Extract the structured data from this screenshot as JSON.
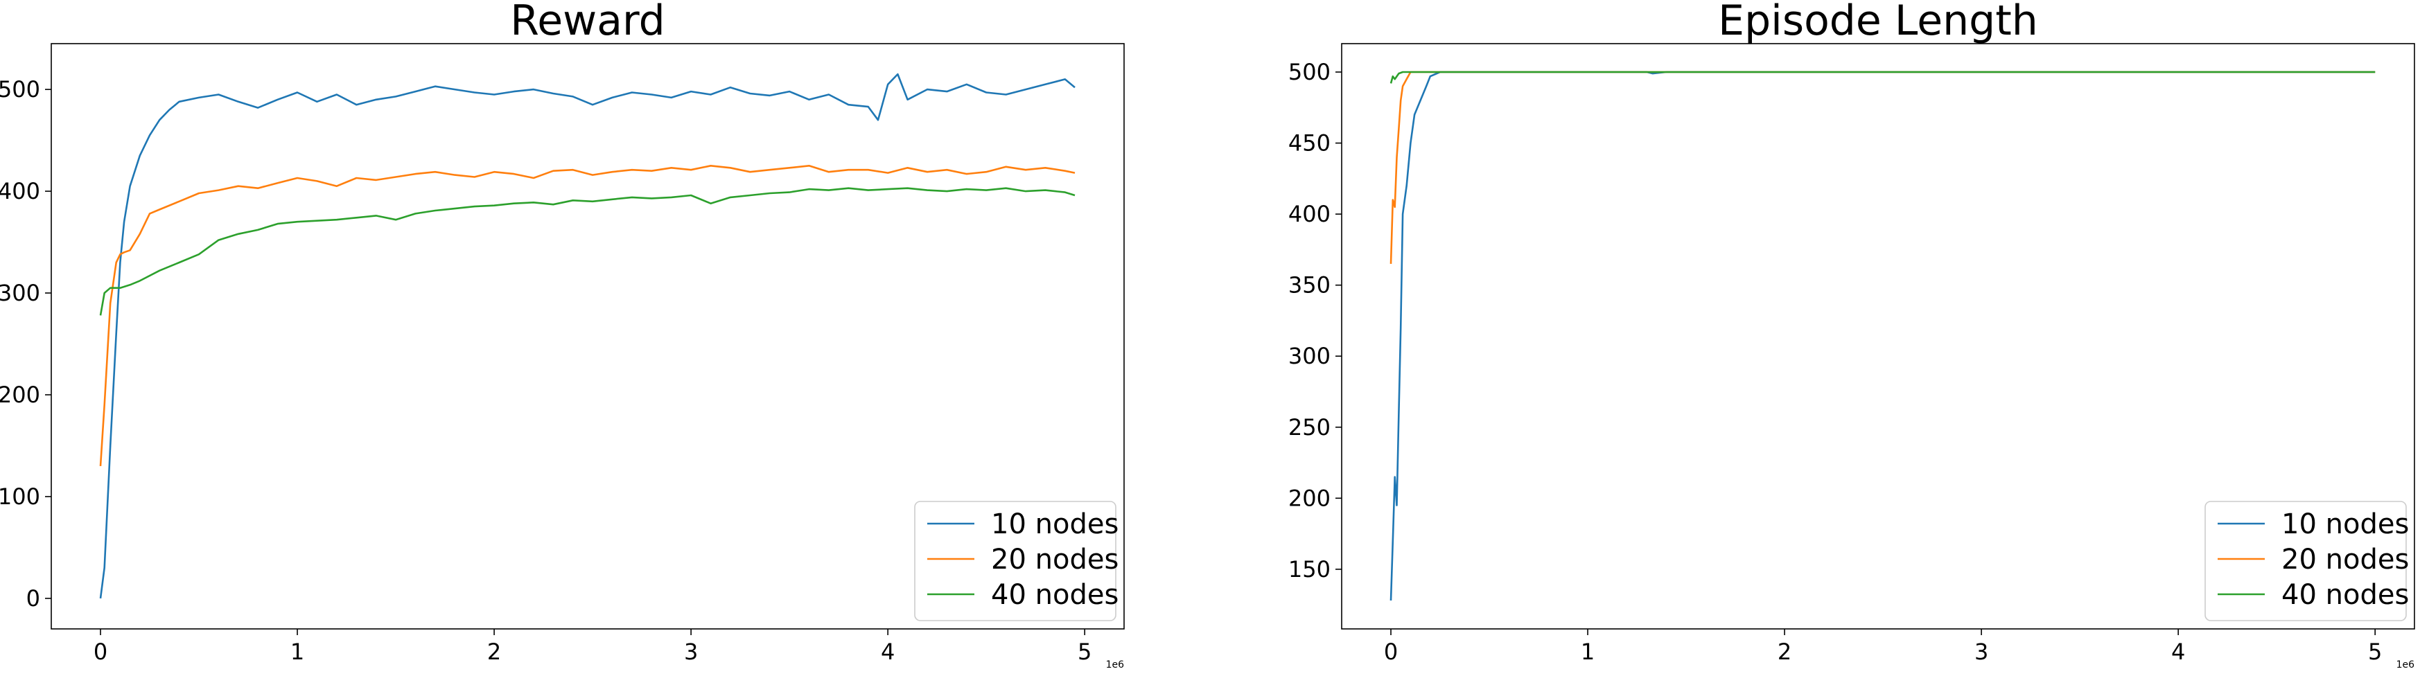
{
  "chart_data": [
    {
      "type": "line",
      "title": "Reward",
      "xlabel": "",
      "ylabel": "",
      "x_offset_label": "1e6",
      "xlim": [
        -0.25,
        5.2
      ],
      "ylim": [
        -30,
        545
      ],
      "xticks": [
        0,
        1,
        2,
        3,
        4,
        5
      ],
      "xtick_labels": [
        "0",
        "1",
        "2",
        "3",
        "4",
        "5"
      ],
      "yticks": [
        0,
        100,
        200,
        300,
        400,
        500
      ],
      "ytick_labels": [
        "0",
        "100",
        "200",
        "300",
        "400",
        "500"
      ],
      "grid": false,
      "legend": "lower-right",
      "series": [
        {
          "name": "10 nodes",
          "color": "#1f77b4",
          "x": [
            0,
            0.02,
            0.05,
            0.08,
            0.1,
            0.12,
            0.15,
            0.2,
            0.25,
            0.3,
            0.35,
            0.4,
            0.5,
            0.6,
            0.7,
            0.8,
            0.9,
            1.0,
            1.1,
            1.2,
            1.3,
            1.4,
            1.5,
            1.6,
            1.7,
            1.8,
            1.9,
            2.0,
            2.1,
            2.2,
            2.3,
            2.4,
            2.5,
            2.6,
            2.7,
            2.8,
            2.9,
            3.0,
            3.1,
            3.2,
            3.3,
            3.4,
            3.5,
            3.6,
            3.7,
            3.8,
            3.9,
            3.95,
            4.0,
            4.05,
            4.1,
            4.2,
            4.3,
            4.4,
            4.5,
            4.6,
            4.7,
            4.8,
            4.9,
            4.95
          ],
          "y": [
            0,
            30,
            150,
            260,
            330,
            370,
            405,
            435,
            455,
            470,
            480,
            488,
            492,
            495,
            488,
            482,
            490,
            497,
            488,
            495,
            485,
            490,
            493,
            498,
            503,
            500,
            497,
            495,
            498,
            500,
            496,
            493,
            485,
            492,
            497,
            495,
            492,
            498,
            495,
            502,
            496,
            494,
            498,
            490,
            495,
            485,
            483,
            470,
            505,
            515,
            490,
            500,
            498,
            505,
            497,
            495,
            500,
            505,
            510,
            502
          ]
        },
        {
          "name": "20 nodes",
          "color": "#ff7f0e",
          "x": [
            0,
            0.02,
            0.05,
            0.08,
            0.1,
            0.12,
            0.15,
            0.2,
            0.25,
            0.3,
            0.4,
            0.5,
            0.6,
            0.7,
            0.8,
            0.9,
            1.0,
            1.1,
            1.2,
            1.3,
            1.4,
            1.5,
            1.6,
            1.7,
            1.8,
            1.9,
            2.0,
            2.1,
            2.2,
            2.3,
            2.4,
            2.5,
            2.6,
            2.7,
            2.8,
            2.9,
            3.0,
            3.1,
            3.2,
            3.3,
            3.4,
            3.5,
            3.6,
            3.7,
            3.8,
            3.9,
            4.0,
            4.1,
            4.2,
            4.3,
            4.4,
            4.5,
            4.6,
            4.7,
            4.8,
            4.9,
            4.95
          ],
          "y": [
            130,
            190,
            290,
            330,
            338,
            340,
            342,
            358,
            378,
            382,
            390,
            398,
            401,
            405,
            403,
            408,
            413,
            410,
            405,
            413,
            411,
            414,
            417,
            419,
            416,
            414,
            419,
            417,
            413,
            420,
            421,
            416,
            419,
            421,
            420,
            423,
            421,
            425,
            423,
            419,
            421,
            423,
            425,
            419,
            421,
            421,
            418,
            423,
            419,
            421,
            417,
            419,
            424,
            421,
            423,
            420,
            418
          ]
        },
        {
          "name": "40 nodes",
          "color": "#2ca02c",
          "x": [
            0,
            0.02,
            0.05,
            0.1,
            0.15,
            0.2,
            0.3,
            0.4,
            0.5,
            0.6,
            0.7,
            0.8,
            0.9,
            1.0,
            1.1,
            1.2,
            1.3,
            1.4,
            1.5,
            1.6,
            1.7,
            1.8,
            1.9,
            2.0,
            2.1,
            2.2,
            2.3,
            2.4,
            2.5,
            2.6,
            2.7,
            2.8,
            2.9,
            3.0,
            3.1,
            3.2,
            3.3,
            3.4,
            3.5,
            3.6,
            3.7,
            3.8,
            3.9,
            4.0,
            4.1,
            4.2,
            4.3,
            4.4,
            4.5,
            4.6,
            4.7,
            4.8,
            4.9,
            4.95
          ],
          "y": [
            278,
            300,
            305,
            305,
            308,
            312,
            322,
            330,
            338,
            352,
            358,
            362,
            368,
            370,
            371,
            372,
            374,
            376,
            372,
            378,
            381,
            383,
            385,
            386,
            388,
            389,
            387,
            391,
            390,
            392,
            394,
            393,
            394,
            396,
            388,
            394,
            396,
            398,
            399,
            402,
            401,
            403,
            401,
            402,
            403,
            401,
            400,
            402,
            401,
            403,
            400,
            401,
            399,
            396
          ]
        }
      ]
    },
    {
      "type": "line",
      "title": "Episode Length",
      "xlabel": "",
      "ylabel": "",
      "x_offset_label": "1e6",
      "xlim": [
        -0.25,
        5.2
      ],
      "ylim": [
        108,
        520
      ],
      "xticks": [
        0,
        1,
        2,
        3,
        4,
        5
      ],
      "xtick_labels": [
        "0",
        "1",
        "2",
        "3",
        "4",
        "5"
      ],
      "yticks": [
        150,
        200,
        250,
        300,
        350,
        400,
        450,
        500
      ],
      "ytick_labels": [
        "150",
        "200",
        "250",
        "300",
        "350",
        "400",
        "450",
        "500"
      ],
      "grid": false,
      "legend": "lower-right",
      "series": [
        {
          "name": "10 nodes",
          "color": "#1f77b4",
          "x": [
            0,
            0.01,
            0.02,
            0.03,
            0.04,
            0.05,
            0.06,
            0.08,
            0.1,
            0.12,
            0.15,
            0.18,
            0.2,
            0.25,
            0.3,
            1.3,
            1.33,
            1.4,
            5.0
          ],
          "y": [
            128,
            170,
            215,
            195,
            260,
            320,
            400,
            420,
            450,
            470,
            480,
            490,
            497,
            500,
            500,
            500,
            499,
            500,
            500
          ]
        },
        {
          "name": "20 nodes",
          "color": "#ff7f0e",
          "x": [
            0,
            0.01,
            0.02,
            0.03,
            0.04,
            0.05,
            0.06,
            0.08,
            0.1,
            0.12,
            5.0
          ],
          "y": [
            365,
            410,
            405,
            440,
            460,
            480,
            490,
            495,
            500,
            500,
            500
          ]
        },
        {
          "name": "40 nodes",
          "color": "#2ca02c",
          "x": [
            0,
            0.01,
            0.02,
            0.04,
            0.06,
            0.1,
            0.2,
            0.25,
            5.0
          ],
          "y": [
            492,
            497,
            495,
            499,
            500,
            500,
            500,
            500,
            500
          ]
        }
      ]
    }
  ]
}
